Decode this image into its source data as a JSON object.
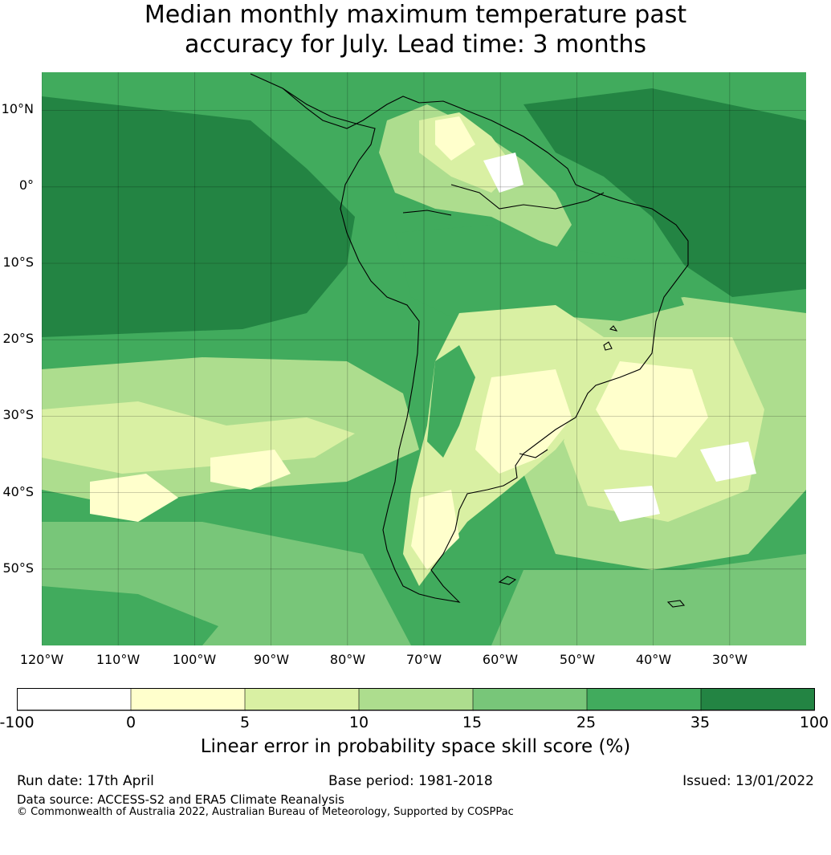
{
  "title": {
    "line1": "Median monthly maximum temperature past",
    "line2": "accuracy for July. Lead time: 3 months"
  },
  "map": {
    "lat_labels": [
      "10°N",
      "0°",
      "10°S",
      "20°S",
      "30°S",
      "40°S",
      "50°S"
    ],
    "lon_labels": [
      "120°W",
      "110°W",
      "100°W",
      "90°W",
      "80°W",
      "70°W",
      "60°W",
      "50°W",
      "40°W",
      "30°W"
    ],
    "extent": {
      "lon": [
        -120,
        -20
      ],
      "lat": [
        -60,
        15
      ]
    },
    "gridlines": true
  },
  "colorbar": {
    "ticks": [
      "-100",
      "0",
      "5",
      "10",
      "15",
      "25",
      "35",
      "100"
    ],
    "colors": [
      "#ffffff",
      "#ffffcc",
      "#d9f0a3",
      "#addd8e",
      "#78c679",
      "#41ab5d",
      "#238443"
    ],
    "label": "Linear error in probability space skill score (%)"
  },
  "footer": {
    "run_date": "Run date: 17th April",
    "base_period": "Base period: 1981-2018",
    "issued": "Issued: 13/01/2022",
    "data_source": "Data source: ACCESS-S2 and ERA5 Climate Reanalysis",
    "copyright": "© Commonwealth of Australia 2022, Australian Bureau of Meteorology, Supported by COSPPac"
  }
}
